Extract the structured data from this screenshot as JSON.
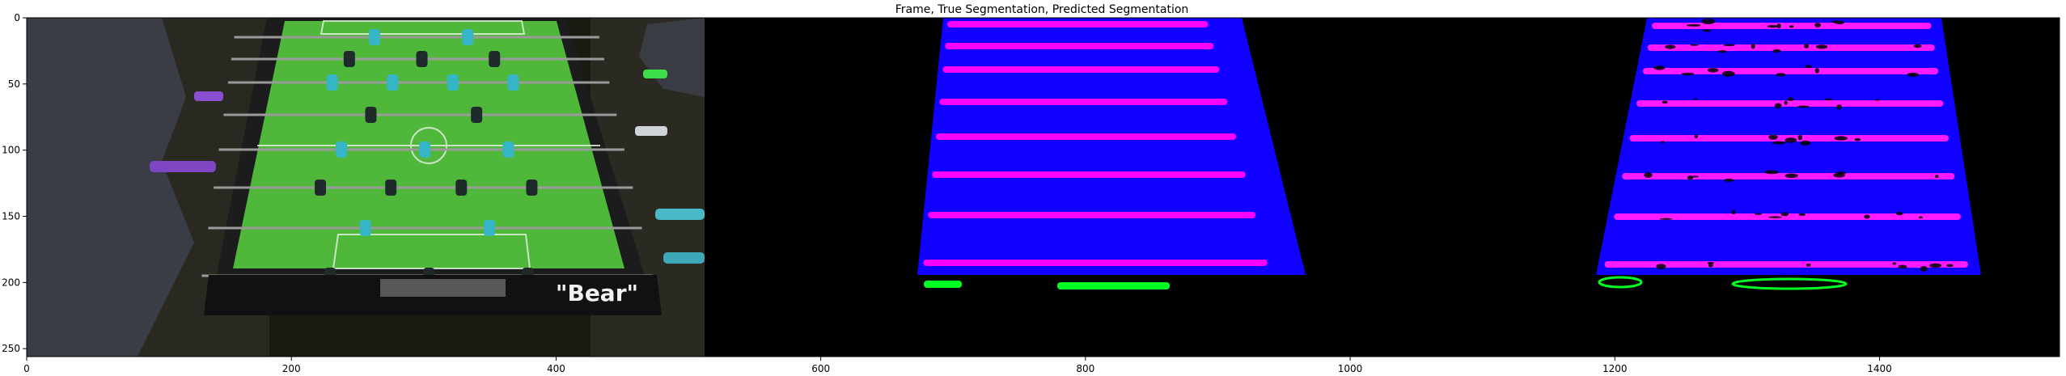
{
  "figure": {
    "title": "Frame, True Segmentation, Predicted Segmentation",
    "panels": [
      {
        "name": "Frame",
        "x_range": [
          0,
          512
        ]
      },
      {
        "name": "True Segmentation",
        "x_range": [
          512,
          1024
        ]
      },
      {
        "name": "Predicted Segmentation",
        "x_range": [
          1024,
          1536
        ]
      }
    ],
    "image_extent": {
      "x": [
        0,
        1536
      ],
      "y": [
        256,
        0
      ]
    },
    "x_ticks": [
      "0",
      "200",
      "400",
      "600",
      "800",
      "1000",
      "1200",
      "1400"
    ],
    "x_tick_values": [
      0,
      200,
      400,
      600,
      800,
      1000,
      1200,
      1400
    ],
    "y_ticks": [
      "0",
      "50",
      "100",
      "150",
      "200",
      "250"
    ],
    "y_tick_values": [
      0,
      50,
      100,
      150,
      200,
      250
    ],
    "frame_sign_text": "\"Bear\"",
    "colors": {
      "background": "#000000",
      "field_green": "#4fb83a",
      "mask_blue": "#1000ff",
      "rod_magenta": "#ff00ff",
      "goal_green": "#00ff22",
      "player_cyan": "#35b5c5",
      "player_dark": "#1f2a2a",
      "handle_purple": "#8a4fd0"
    }
  }
}
